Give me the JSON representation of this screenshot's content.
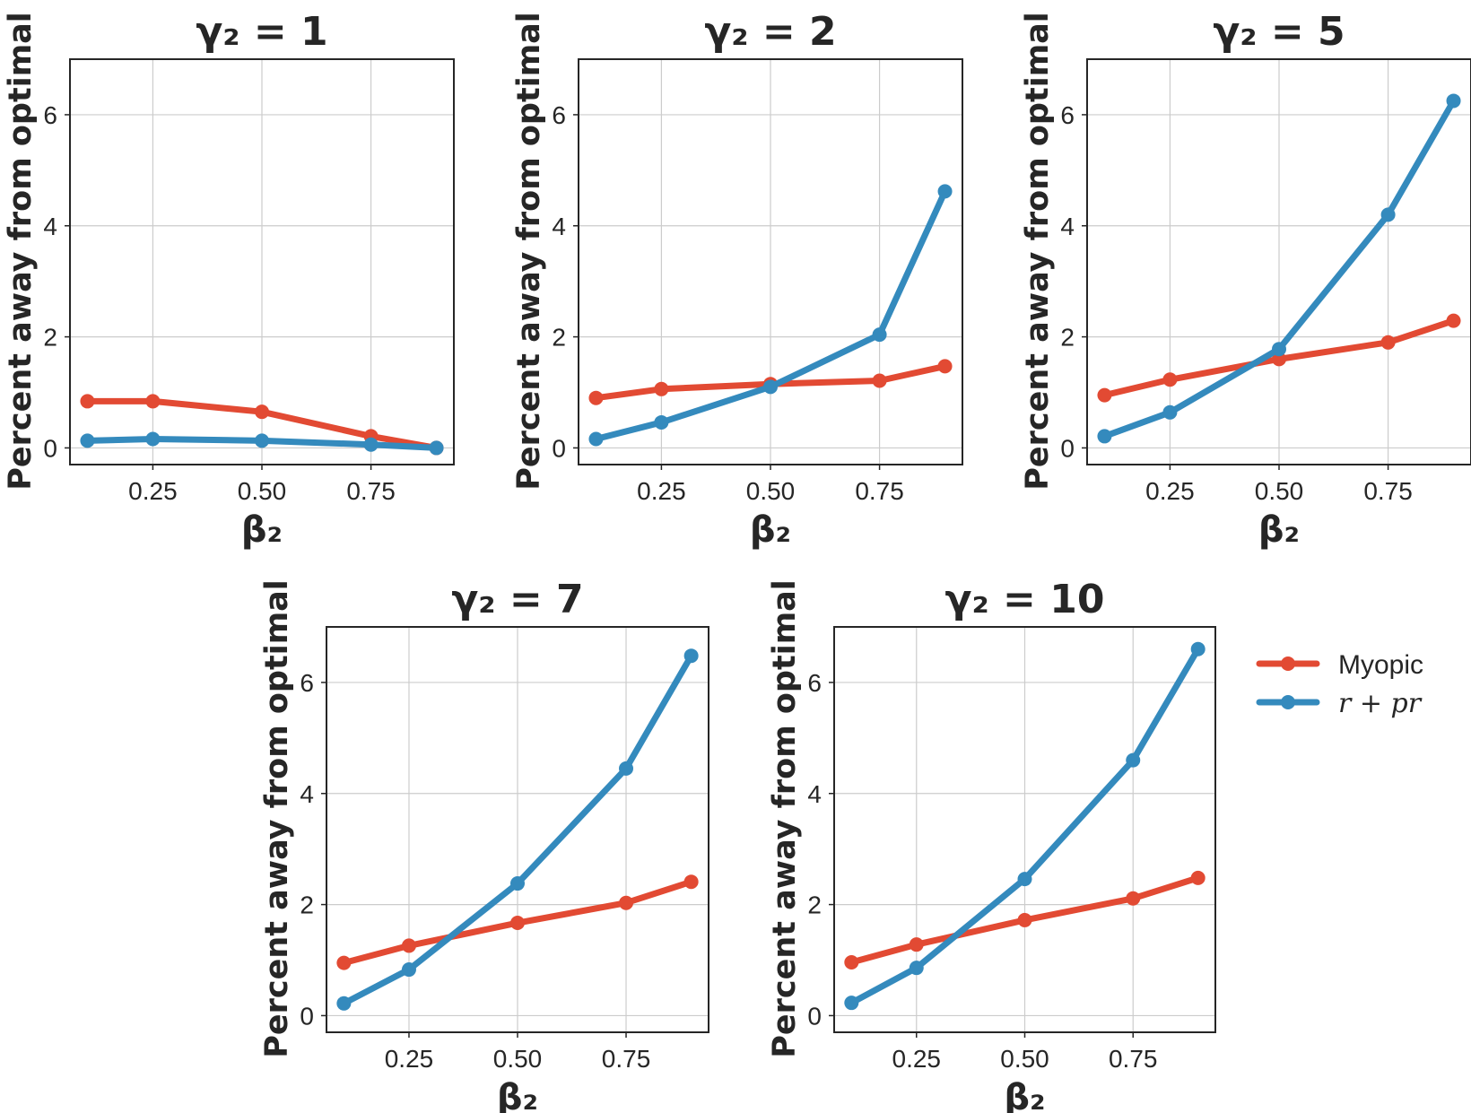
{
  "legend": {
    "items": [
      {
        "name": "Myopic",
        "color": "#E24A33"
      },
      {
        "name": "r + pr",
        "color": "#348ABD"
      }
    ]
  },
  "chart_data": [
    {
      "type": "line",
      "title": "γ₂ = 1",
      "xlabel": "β₂",
      "ylabel": "Percent away from optimal",
      "x": [
        0.1,
        0.25,
        0.5,
        0.75,
        0.9
      ],
      "xticks": [
        "0.25",
        "0.50",
        "0.75"
      ],
      "yticks": [
        "0",
        "2",
        "4",
        "6"
      ],
      "xlim": [
        0.06,
        0.94
      ],
      "ylim": [
        -0.3,
        7.0
      ],
      "grid": true,
      "series": [
        {
          "name": "Myopic",
          "values": [
            0.84,
            0.84,
            0.65,
            0.21,
            0.0
          ]
        },
        {
          "name": "r + pr",
          "values": [
            0.13,
            0.16,
            0.13,
            0.06,
            0.0
          ]
        }
      ]
    },
    {
      "type": "line",
      "title": "γ₂ = 2",
      "xlabel": "β₂",
      "ylabel": "Percent away from optimal",
      "x": [
        0.1,
        0.25,
        0.5,
        0.75,
        0.9
      ],
      "xticks": [
        "0.25",
        "0.50",
        "0.75"
      ],
      "yticks": [
        "0",
        "2",
        "4",
        "6"
      ],
      "xlim": [
        0.06,
        0.94
      ],
      "ylim": [
        -0.3,
        7.0
      ],
      "grid": true,
      "series": [
        {
          "name": "Myopic",
          "values": [
            0.9,
            1.06,
            1.15,
            1.21,
            1.47
          ]
        },
        {
          "name": "r + pr",
          "values": [
            0.16,
            0.46,
            1.1,
            2.04,
            4.62
          ]
        }
      ]
    },
    {
      "type": "line",
      "title": "γ₂ = 5",
      "xlabel": "β₂",
      "ylabel": "Percent away from optimal",
      "x": [
        0.1,
        0.25,
        0.5,
        0.75,
        0.9
      ],
      "xticks": [
        "0.25",
        "0.50",
        "0.75"
      ],
      "yticks": [
        "0",
        "2",
        "4",
        "6"
      ],
      "xlim": [
        0.06,
        0.94
      ],
      "ylim": [
        -0.3,
        7.0
      ],
      "grid": true,
      "series": [
        {
          "name": "Myopic",
          "values": [
            0.95,
            1.23,
            1.6,
            1.9,
            2.29
          ]
        },
        {
          "name": "r + pr",
          "values": [
            0.21,
            0.64,
            1.78,
            4.2,
            6.25
          ]
        }
      ]
    },
    {
      "type": "line",
      "title": "γ₂ = 7",
      "xlabel": "β₂",
      "ylabel": "Percent away from optimal",
      "x": [
        0.1,
        0.25,
        0.5,
        0.75,
        0.9
      ],
      "xticks": [
        "0.25",
        "0.50",
        "0.75"
      ],
      "yticks": [
        "0",
        "2",
        "4",
        "6"
      ],
      "xlim": [
        0.06,
        0.94
      ],
      "ylim": [
        -0.3,
        7.0
      ],
      "grid": true,
      "series": [
        {
          "name": "Myopic",
          "values": [
            0.95,
            1.26,
            1.67,
            2.03,
            2.41
          ]
        },
        {
          "name": "r + pr",
          "values": [
            0.22,
            0.83,
            2.38,
            4.45,
            6.48
          ]
        }
      ]
    },
    {
      "type": "line",
      "title": "γ₂ = 10",
      "xlabel": "β₂",
      "ylabel": "Percent away from optimal",
      "x": [
        0.1,
        0.25,
        0.5,
        0.75,
        0.9
      ],
      "xticks": [
        "0.25",
        "0.50",
        "0.75"
      ],
      "yticks": [
        "0",
        "2",
        "4",
        "6"
      ],
      "xlim": [
        0.06,
        0.94
      ],
      "ylim": [
        -0.3,
        7.0
      ],
      "grid": true,
      "series": [
        {
          "name": "Myopic",
          "values": [
            0.96,
            1.28,
            1.72,
            2.11,
            2.48
          ]
        },
        {
          "name": "r + pr",
          "values": [
            0.23,
            0.86,
            2.46,
            4.6,
            6.6
          ]
        }
      ]
    }
  ]
}
